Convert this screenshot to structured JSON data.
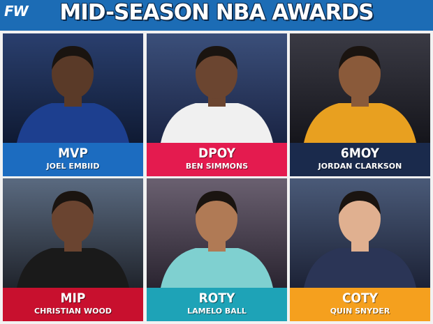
{
  "header": {
    "logo": "FW",
    "title": "MID-SEASON NBA AWARDS"
  },
  "awards": [
    {
      "award": "MVP",
      "player": "JOEL EMBIID"
    },
    {
      "award": "DPOY",
      "player": "BEN SIMMONS"
    },
    {
      "award": "6MOY",
      "player": "JORDAN CLARKSON"
    },
    {
      "award": "MIP",
      "player": "CHRISTIAN WOOD"
    },
    {
      "award": "ROTY",
      "player": "LAMELO BALL"
    },
    {
      "award": "COTY",
      "player": "QUIN SNYDER"
    }
  ]
}
